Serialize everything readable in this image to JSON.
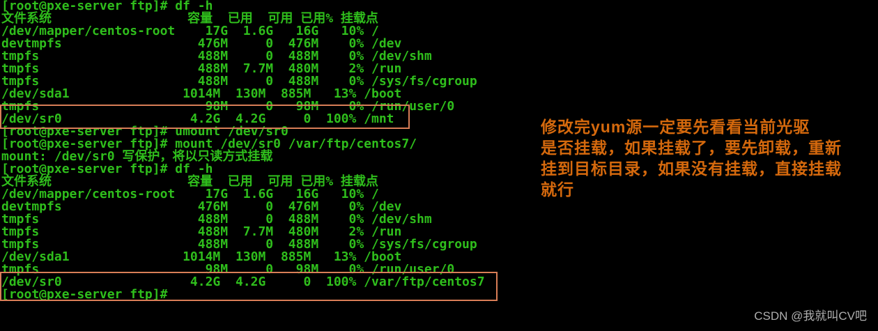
{
  "terminal": {
    "lines": [
      "[root@pxe-server ftp]# df -h",
      "文件系统                  容量  已用  可用 已用% 挂载点",
      "/dev/mapper/centos-root    17G  1.6G   16G   10% /",
      "devtmpfs                  476M     0  476M    0% /dev",
      "tmpfs                     488M     0  488M    0% /dev/shm",
      "tmpfs                     488M  7.7M  480M    2% /run",
      "tmpfs                     488M     0  488M    0% /sys/fs/cgroup",
      "/dev/sda1               1014M  130M  885M   13% /boot",
      "tmpfs                      98M     0   98M    0% /run/user/0",
      "/dev/sr0                 4.2G  4.2G     0  100% /mnt",
      "[root@pxe-server ftp]# umount /dev/sr0",
      "[root@pxe-server ftp]# mount /dev/sr0 /var/ftp/centos7/",
      "mount: /dev/sr0 写保护，将以只读方式挂载",
      "[root@pxe-server ftp]# df -h",
      "文件系统                  容量  已用  可用 已用% 挂载点",
      "/dev/mapper/centos-root    17G  1.6G   16G   10% /",
      "devtmpfs                  476M     0  476M    0% /dev",
      "tmpfs                     488M     0  488M    0% /dev/shm",
      "tmpfs                     488M  7.7M  480M    2% /run",
      "tmpfs                     488M     0  488M    0% /sys/fs/cgroup",
      "/dev/sda1               1014M  130M  885M   13% /boot",
      "tmpfs                      98M     0   98M    0% /run/user/0",
      "/dev/sr0                 4.2G  4.2G     0  100% /var/ftp/centos7",
      "[root@pxe-server ftp]# "
    ],
    "prompt": "[root@pxe-server ftp]#",
    "df_table": {
      "headers": [
        "文件系统",
        "容量",
        "已用",
        "可用",
        "已用%",
        "挂载点"
      ],
      "rows_first": [
        [
          "/dev/mapper/centos-root",
          "17G",
          "1.6G",
          "16G",
          "10%",
          "/"
        ],
        [
          "devtmpfs",
          "476M",
          "0",
          "476M",
          "0%",
          "/dev"
        ],
        [
          "tmpfs",
          "488M",
          "0",
          "488M",
          "0%",
          "/dev/shm"
        ],
        [
          "tmpfs",
          "488M",
          "7.7M",
          "480M",
          "2%",
          "/run"
        ],
        [
          "tmpfs",
          "488M",
          "0",
          "488M",
          "0%",
          "/sys/fs/cgroup"
        ],
        [
          "/dev/sda1",
          "1014M",
          "130M",
          "885M",
          "13%",
          "/boot"
        ],
        [
          "tmpfs",
          "98M",
          "0",
          "98M",
          "0%",
          "/run/user/0"
        ],
        [
          "/dev/sr0",
          "4.2G",
          "4.2G",
          "0",
          "100%",
          "/mnt"
        ]
      ],
      "rows_second": [
        [
          "/dev/mapper/centos-root",
          "17G",
          "1.6G",
          "16G",
          "10%",
          "/"
        ],
        [
          "devtmpfs",
          "476M",
          "0",
          "476M",
          "0%",
          "/dev"
        ],
        [
          "tmpfs",
          "488M",
          "0",
          "488M",
          "0%",
          "/dev/shm"
        ],
        [
          "tmpfs",
          "488M",
          "7.7M",
          "480M",
          "2%",
          "/run"
        ],
        [
          "tmpfs",
          "488M",
          "0",
          "488M",
          "0%",
          "/sys/fs/cgroup"
        ],
        [
          "/dev/sda1",
          "1014M",
          "130M",
          "885M",
          "13%",
          "/boot"
        ],
        [
          "tmpfs",
          "98M",
          "0",
          "98M",
          "0%",
          "/run/user/0"
        ],
        [
          "/dev/sr0",
          "4.2G",
          "4.2G",
          "0",
          "100%",
          "/var/ftp/centos7"
        ]
      ]
    },
    "commands": [
      "df -h",
      "umount /dev/sr0",
      "mount /dev/sr0 /var/ftp/centos7/",
      "df -h"
    ],
    "mount_message": "mount: /dev/sr0 写保护，将以只读方式挂载"
  },
  "annotation": {
    "lines": [
      "修改完yum源一定要先看看当前光驱",
      "是否挂载，如果挂载了，要先卸载，重新",
      "挂到目标目录，如果没有挂载，直接挂载",
      "就行"
    ]
  },
  "watermark": {
    "text": "CSDN @我就叫CV吧"
  },
  "colors": {
    "background": "#000000",
    "terminal_green": "#2fbe1c",
    "highlight_border": "#d97e57",
    "annotation_orange": "#d5690d",
    "watermark_gray": "#aeaeae"
  }
}
